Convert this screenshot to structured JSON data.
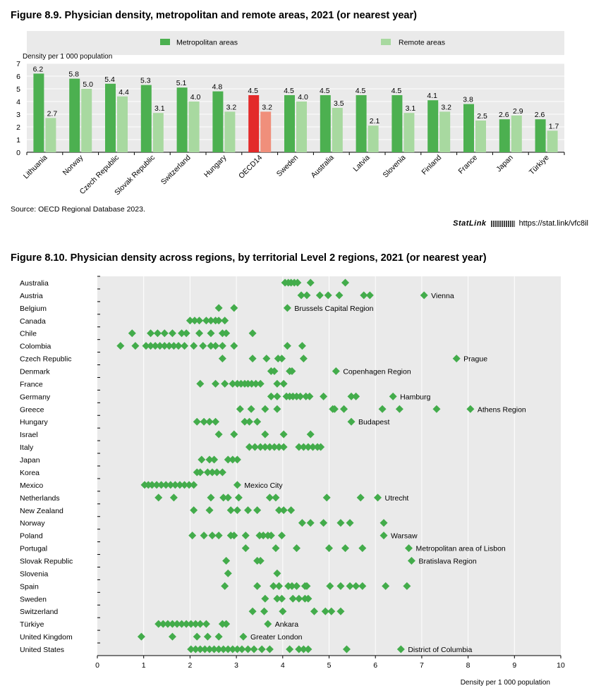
{
  "figure89": {
    "title": "Figure 8.9. Physician density, metropolitan and remote areas, 2021 (or nearest year)",
    "source": "Source: OECD Regional Database 2023.",
    "statlink_brand": "StatLink",
    "statlink_url": "https://stat.link/vfc8il"
  },
  "figure810": {
    "title": "Figure 8.10. Physician density across regions, by territorial Level 2 regions, 2021 (or nearest year)"
  },
  "colors": {
    "metro": "#4cb050",
    "remote": "#a8d9a0",
    "oecd_metro": "#e32a2a",
    "oecd_remote": "#f08f7b",
    "plot_bg": "#eaeaea",
    "dot": "#43ac4b"
  },
  "chart_data": [
    {
      "type": "bar",
      "ylabel": "Density per 1 000 population",
      "ylim": [
        0,
        7
      ],
      "yticks": [
        0,
        1,
        2,
        3,
        4,
        5,
        6,
        7
      ],
      "legend_position": "top",
      "highlight_category": "OECD14",
      "categories": [
        "Lithuania",
        "Norway",
        "Czech Republic",
        "Slovak Republic",
        "Switzerland",
        "Hungary",
        "OECD14",
        "Sweden",
        "Australia",
        "Latvia",
        "Slovenia",
        "Finland",
        "France",
        "Japan",
        "Türkiye"
      ],
      "series": [
        {
          "name": "Metropolitan areas",
          "values": [
            6.2,
            5.8,
            5.4,
            5.3,
            5.1,
            4.8,
            4.5,
            4.5,
            4.5,
            4.5,
            4.5,
            4.1,
            3.8,
            2.6,
            2.6
          ],
          "labels": [
            "6.2",
            "5.8",
            "5.4",
            "5.3",
            "5.1",
            "4.8",
            "4.5",
            "4.5",
            "4.5",
            "4.5",
            "4.5",
            "4.1",
            "3.8",
            "2.6",
            "2.6"
          ]
        },
        {
          "name": "Remote areas",
          "values": [
            2.7,
            5.0,
            4.4,
            3.1,
            4.0,
            3.2,
            3.2,
            4.0,
            3.5,
            2.1,
            3.1,
            3.2,
            2.5,
            2.9,
            1.7
          ],
          "labels": [
            "2.7",
            "5.0",
            "4.4",
            "3.1",
            "4.0",
            "3.2",
            "3.2",
            "4.0",
            "3.5",
            "2.1",
            "3.1",
            "3.2",
            "2.5",
            "2.9",
            "1.7"
          ]
        }
      ]
    },
    {
      "type": "scatter",
      "xlabel": "Density per 1 000 population",
      "xlim": [
        0,
        10
      ],
      "xticks": [
        0,
        1,
        2,
        3,
        4,
        5,
        6,
        7,
        8,
        9,
        10
      ],
      "rows": [
        {
          "country": "Australia",
          "values": [
            4.05,
            4.12,
            4.18,
            4.25,
            4.32,
            4.6,
            5.35
          ]
        },
        {
          "country": "Austria",
          "values": [
            4.4,
            4.52,
            4.8,
            4.98,
            5.22,
            5.75,
            5.88,
            7.05
          ],
          "annotation": "Vienna",
          "annotated_value": 7.05
        },
        {
          "country": "Belgium",
          "values": [
            2.62,
            2.95,
            4.1
          ],
          "annotation": "Brussels Capital Region",
          "annotated_value": 4.1
        },
        {
          "country": "Canada",
          "values": [
            2.0,
            2.1,
            2.2,
            2.35,
            2.45,
            2.55,
            2.62,
            2.75
          ]
        },
        {
          "country": "Chile",
          "values": [
            0.75,
            1.15,
            1.3,
            1.45,
            1.62,
            1.82,
            1.92,
            2.2,
            2.45,
            2.7,
            2.78,
            3.35
          ]
        },
        {
          "country": "Colombia",
          "values": [
            0.5,
            0.82,
            1.05,
            1.15,
            1.25,
            1.35,
            1.45,
            1.55,
            1.65,
            1.75,
            1.88,
            2.08,
            2.28,
            2.45,
            2.55,
            2.7,
            2.95,
            4.1,
            4.42
          ]
        },
        {
          "country": "Czech Republic",
          "values": [
            2.7,
            3.35,
            3.65,
            3.9,
            3.98,
            4.45,
            7.75
          ],
          "annotation": "Prague",
          "annotated_value": 7.75
        },
        {
          "country": "Denmark",
          "values": [
            3.75,
            3.82,
            4.15,
            4.2,
            5.15
          ],
          "annotation": "Copenhagen Region",
          "annotated_value": 5.15
        },
        {
          "country": "France",
          "values": [
            2.22,
            2.55,
            2.75,
            2.92,
            3.02,
            3.1,
            3.18,
            3.25,
            3.33,
            3.42,
            3.52,
            3.88,
            4.02
          ]
        },
        {
          "country": "Germany",
          "values": [
            3.75,
            3.88,
            4.08,
            4.15,
            4.22,
            4.3,
            4.38,
            4.5,
            4.58,
            4.88,
            5.48,
            5.58,
            6.38
          ],
          "annotation": "Hamburg",
          "annotated_value": 6.38
        },
        {
          "country": "Greece",
          "values": [
            3.08,
            3.32,
            3.62,
            3.88,
            5.08,
            5.12,
            5.32,
            6.15,
            6.52,
            7.32,
            8.05
          ],
          "annotation": "Athens Region",
          "annotated_value": 8.05
        },
        {
          "country": "Hungary",
          "values": [
            2.15,
            2.3,
            2.42,
            2.55,
            3.18,
            3.28,
            3.45,
            5.48
          ],
          "annotation": "Budapest",
          "annotated_value": 5.48
        },
        {
          "country": "Israel",
          "values": [
            2.62,
            2.95,
            3.62,
            4.02,
            4.6
          ]
        },
        {
          "country": "Italy",
          "values": [
            3.28,
            3.4,
            3.52,
            3.62,
            3.72,
            3.82,
            3.92,
            4.02,
            4.35,
            4.45,
            4.55,
            4.65,
            4.75,
            4.82
          ]
        },
        {
          "country": "Japan",
          "values": [
            2.25,
            2.42,
            2.52,
            2.82,
            2.92,
            3.02
          ]
        },
        {
          "country": "Korea",
          "values": [
            2.15,
            2.22,
            2.38,
            2.48,
            2.58,
            2.7
          ]
        },
        {
          "country": "Mexico",
          "values": [
            1.02,
            1.1,
            1.18,
            1.28,
            1.38,
            1.48,
            1.58,
            1.68,
            1.78,
            1.88,
            1.98,
            2.08,
            3.02
          ],
          "annotation": "Mexico City",
          "annotated_value": 3.02
        },
        {
          "country": "Netherlands",
          "values": [
            1.32,
            1.65,
            2.45,
            2.72,
            2.82,
            3.05,
            3.72,
            3.85,
            4.95,
            5.68,
            6.05
          ],
          "annotation": "Utrecht",
          "annotated_value": 6.05
        },
        {
          "country": "New Zealand",
          "values": [
            2.08,
            2.42,
            2.88,
            3.02,
            3.25,
            3.45,
            3.92,
            4.02,
            4.18
          ]
        },
        {
          "country": "Norway",
          "values": [
            4.42,
            4.6,
            4.88,
            5.25,
            5.45,
            6.18
          ]
        },
        {
          "country": "Poland",
          "values": [
            2.05,
            2.3,
            2.48,
            2.62,
            2.88,
            2.95,
            3.2,
            3.5,
            3.58,
            3.68,
            3.75,
            3.98,
            6.18
          ],
          "annotation": "Warsaw",
          "annotated_value": 6.18
        },
        {
          "country": "Portugal",
          "values": [
            3.2,
            3.85,
            4.3,
            5.0,
            5.35,
            5.72,
            6.72
          ],
          "annotation": "Metropolitan area of Lisbon",
          "annotated_value": 6.72
        },
        {
          "country": "Slovak Republic",
          "values": [
            2.78,
            3.45,
            3.52,
            6.78
          ],
          "annotation": "Bratislava Region",
          "annotated_value": 6.78
        },
        {
          "country": "Slovenia",
          "values": [
            2.82,
            3.88
          ]
        },
        {
          "country": "Spain",
          "values": [
            2.75,
            3.45,
            3.8,
            3.92,
            4.12,
            4.2,
            4.3,
            4.48,
            4.52,
            5.02,
            5.25,
            5.45,
            5.58,
            5.72,
            6.22,
            6.68
          ]
        },
        {
          "country": "Sweden",
          "values": [
            3.62,
            3.88,
            3.98,
            4.22,
            4.35,
            4.48,
            4.55
          ]
        },
        {
          "country": "Switzerland",
          "values": [
            3.35,
            3.6,
            4.0,
            4.68,
            4.92,
            5.05,
            5.25
          ]
        },
        {
          "country": "Türkiye",
          "values": [
            1.32,
            1.42,
            1.52,
            1.62,
            1.72,
            1.82,
            1.92,
            2.02,
            2.12,
            2.22,
            2.35,
            2.7,
            2.78,
            3.68
          ],
          "annotation": "Ankara",
          "annotated_value": 3.68
        },
        {
          "country": "United Kingdom",
          "values": [
            0.95,
            1.62,
            2.15,
            2.38,
            2.62,
            3.15
          ],
          "annotation": "Greater London",
          "annotated_value": 3.15
        },
        {
          "country": "United States",
          "values": [
            2.02,
            2.12,
            2.22,
            2.32,
            2.42,
            2.52,
            2.62,
            2.72,
            2.82,
            2.92,
            3.02,
            3.12,
            3.25,
            3.38,
            3.55,
            3.72,
            4.15,
            4.35,
            4.45,
            4.55,
            5.38,
            6.55
          ],
          "annotation": "District of Columbia",
          "annotated_value": 6.55
        }
      ]
    }
  ]
}
